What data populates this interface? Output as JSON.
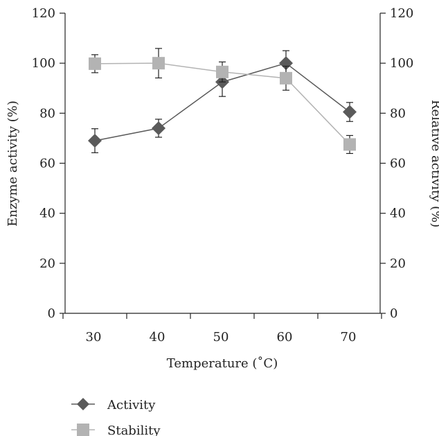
{
  "chart_data": {
    "type": "line",
    "x_categories": [
      "30",
      "40",
      "50",
      "60",
      "70"
    ],
    "xlabel": "Temperature (˚C)",
    "ylabel_left": "Enzyme activity (%)",
    "ylabel_right": "Relative activity (%)",
    "ylim": [
      0,
      120
    ],
    "yticks": [
      "0",
      "20",
      "40",
      "60",
      "80",
      "100",
      "120"
    ],
    "legend_position": "bottom-left",
    "series": [
      {
        "name": "Activity",
        "marker": "diamond",
        "color": "#5a5a5a",
        "values": [
          69.0,
          74.0,
          92.5,
          100.0,
          80.5
        ],
        "error": [
          4.8,
          3.6,
          5.8,
          5.0,
          3.8
        ]
      },
      {
        "name": "Stability",
        "marker": "square",
        "color": "#b3b3b3",
        "values": [
          99.8,
          100.0,
          96.5,
          94.0,
          67.5
        ],
        "error": [
          3.6,
          5.9,
          4.0,
          4.8,
          3.6
        ]
      }
    ]
  }
}
